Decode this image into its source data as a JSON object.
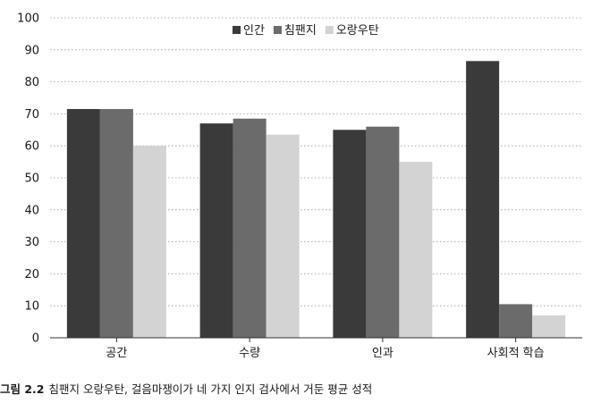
{
  "caption": {
    "label": "그림 2.2",
    "text": "침팬지 오랑우탄, 걸음마쟁이가 네 가지 인지 검사에서 거둔 평균 성적"
  },
  "chart_data": {
    "type": "bar",
    "categories": [
      "공간",
      "수량",
      "인과",
      "사회적 학습"
    ],
    "series": [
      {
        "name": "인간",
        "color": "#3a3a3a",
        "values": [
          71.5,
          67,
          65,
          86.5
        ]
      },
      {
        "name": "침팬지",
        "color": "#6b6b6b",
        "values": [
          71.5,
          68.5,
          66,
          10.5
        ]
      },
      {
        "name": "오랑우탄",
        "color": "#d3d3d3",
        "values": [
          60,
          63.5,
          55,
          7
        ]
      }
    ],
    "ylim": [
      0,
      100
    ],
    "yticks": [
      0,
      10,
      20,
      30,
      40,
      50,
      60,
      70,
      80,
      90,
      100
    ],
    "grid": true,
    "legend": "top-center"
  }
}
